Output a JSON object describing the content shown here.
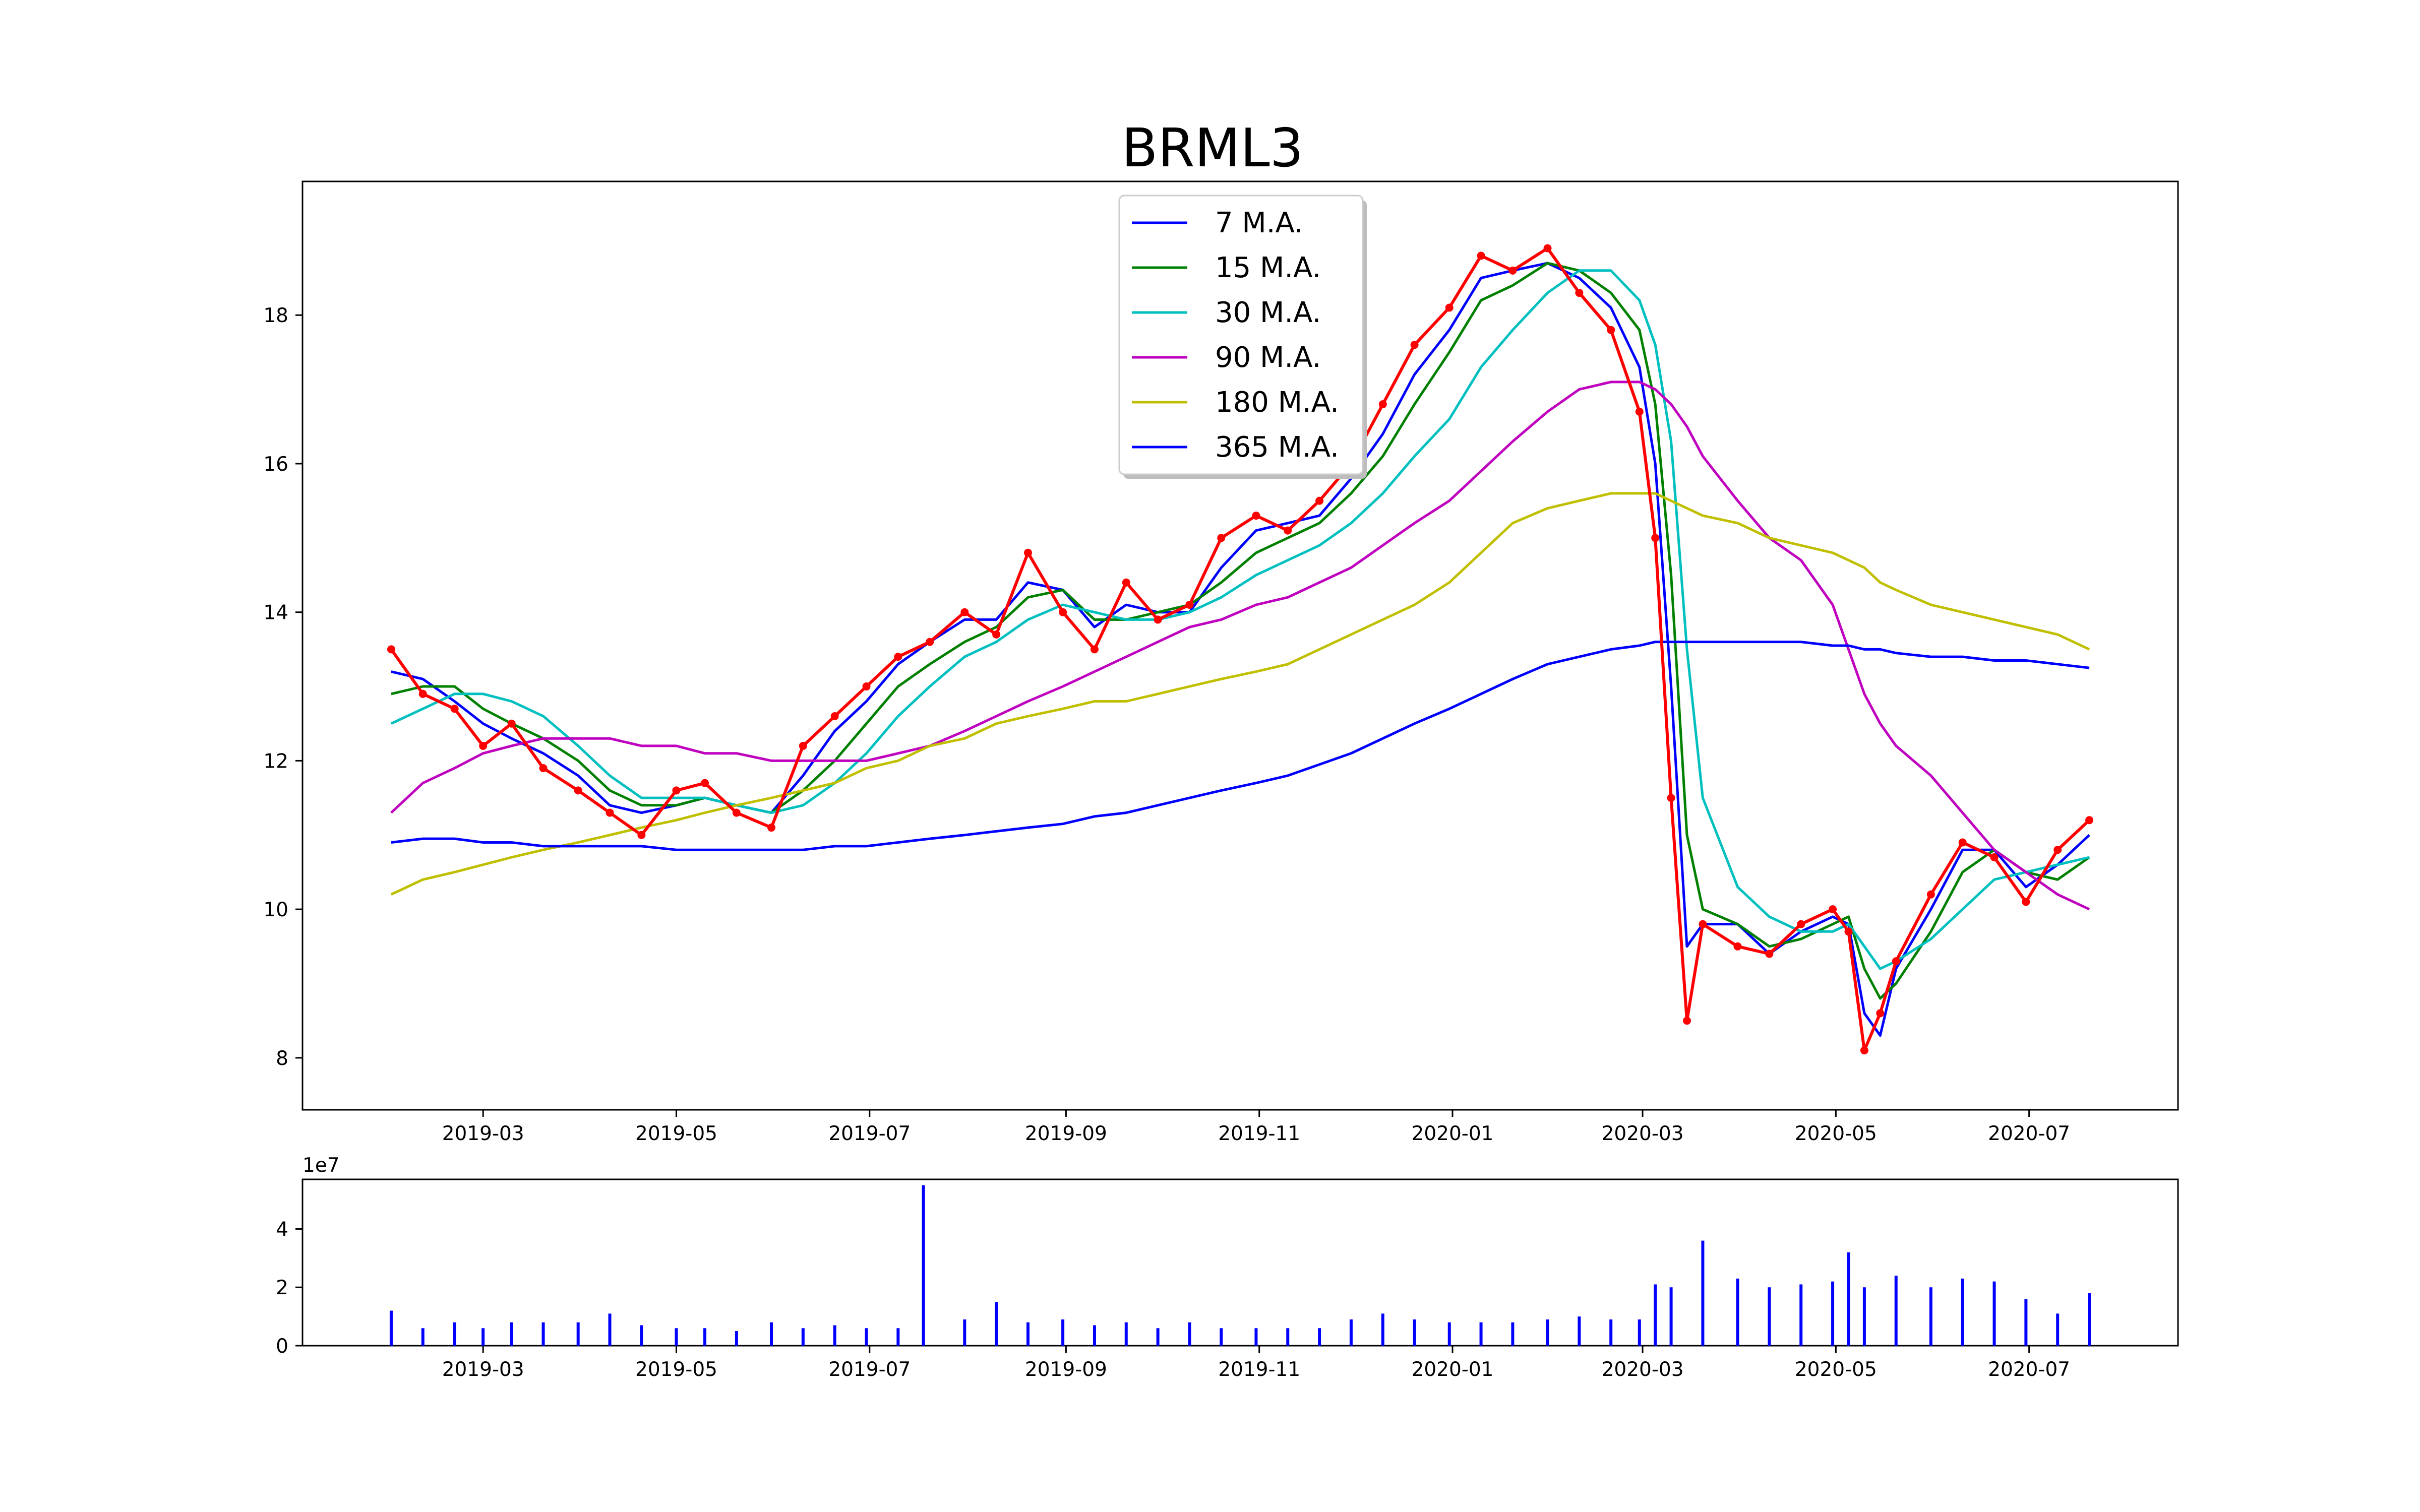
{
  "chart_data": [
    {
      "type": "line",
      "title": "BRML3",
      "xlabel": "",
      "ylabel": "",
      "x_range": [
        "2019-01-03",
        "2020-08-17"
      ],
      "ylim": [
        7.3,
        19.8
      ],
      "x_ticks": [
        "2019-03",
        "2019-05",
        "2019-07",
        "2019-09",
        "2019-11",
        "2020-01",
        "2020-03",
        "2020-05",
        "2020-07"
      ],
      "y_ticks": [
        8,
        10,
        12,
        14,
        16,
        18
      ],
      "legend_position": "top-center",
      "grid": false,
      "x": [
        "2019-01-31",
        "2019-02-10",
        "2019-02-20",
        "2019-03-01",
        "2019-03-10",
        "2019-03-20",
        "2019-03-31",
        "2019-04-10",
        "2019-04-20",
        "2019-05-01",
        "2019-05-10",
        "2019-05-20",
        "2019-05-31",
        "2019-06-10",
        "2019-06-20",
        "2019-06-30",
        "2019-07-10",
        "2019-07-20",
        "2019-07-31",
        "2019-08-10",
        "2019-08-20",
        "2019-08-31",
        "2019-09-10",
        "2019-09-20",
        "2019-09-30",
        "2019-10-10",
        "2019-10-20",
        "2019-10-31",
        "2019-11-10",
        "2019-11-20",
        "2019-11-30",
        "2019-12-10",
        "2019-12-20",
        "2019-12-31",
        "2020-01-10",
        "2020-01-20",
        "2020-01-31",
        "2020-02-10",
        "2020-02-20",
        "2020-02-29",
        "2020-03-05",
        "2020-03-10",
        "2020-03-15",
        "2020-03-20",
        "2020-03-31",
        "2020-04-10",
        "2020-04-20",
        "2020-04-30",
        "2020-05-05",
        "2020-05-10",
        "2020-05-15",
        "2020-05-20",
        "2020-05-31",
        "2020-06-10",
        "2020-06-20",
        "2020-06-30",
        "2020-07-10",
        "2020-07-20"
      ],
      "series": [
        {
          "name": "",
          "color": "#ff0000",
          "markers": true,
          "values": [
            13.5,
            12.9,
            12.7,
            12.2,
            12.5,
            11.9,
            11.6,
            11.3,
            11.0,
            11.6,
            11.7,
            11.3,
            11.1,
            12.2,
            12.6,
            13.0,
            13.4,
            13.6,
            14.0,
            13.7,
            14.8,
            14.0,
            13.5,
            14.4,
            13.9,
            14.1,
            15.0,
            15.3,
            15.1,
            15.5,
            16.0,
            16.8,
            17.6,
            18.1,
            18.8,
            18.6,
            18.9,
            18.3,
            17.8,
            16.7,
            15.0,
            11.5,
            8.5,
            9.8,
            9.5,
            9.4,
            9.8,
            10.0,
            9.7,
            8.1,
            8.6,
            9.3,
            10.2,
            10.9,
            10.7,
            10.1,
            10.8,
            11.2
          ]
        },
        {
          "name": "7 M.A.",
          "color": "#0000ff",
          "markers": false,
          "values": [
            13.2,
            13.1,
            12.8,
            12.5,
            12.3,
            12.1,
            11.8,
            11.4,
            11.3,
            11.4,
            11.5,
            11.4,
            11.3,
            11.8,
            12.4,
            12.8,
            13.3,
            13.6,
            13.9,
            13.9,
            14.4,
            14.3,
            13.8,
            14.1,
            14.0,
            14.0,
            14.6,
            15.1,
            15.2,
            15.3,
            15.8,
            16.4,
            17.2,
            17.8,
            18.5,
            18.6,
            18.7,
            18.5,
            18.1,
            17.3,
            16.0,
            13.0,
            9.5,
            9.8,
            9.8,
            9.4,
            9.7,
            9.9,
            9.8,
            8.6,
            8.3,
            9.2,
            10.0,
            10.8,
            10.8,
            10.3,
            10.6,
            11.0
          ]
        },
        {
          "name": "15 M.A.",
          "color": "#008000",
          "markers": false,
          "values": [
            12.9,
            13.0,
            13.0,
            12.7,
            12.5,
            12.3,
            12.0,
            11.6,
            11.4,
            11.4,
            11.5,
            11.4,
            11.3,
            11.6,
            12.0,
            12.5,
            13.0,
            13.3,
            13.6,
            13.8,
            14.2,
            14.3,
            13.9,
            13.9,
            14.0,
            14.1,
            14.4,
            14.8,
            15.0,
            15.2,
            15.6,
            16.1,
            16.8,
            17.5,
            18.2,
            18.4,
            18.7,
            18.6,
            18.3,
            17.8,
            16.8,
            14.5,
            11.0,
            10.0,
            9.8,
            9.5,
            9.6,
            9.8,
            9.9,
            9.2,
            8.8,
            9.0,
            9.7,
            10.5,
            10.8,
            10.5,
            10.4,
            10.7
          ]
        },
        {
          "name": "30 M.A.",
          "color": "#00bfbf",
          "markers": false,
          "values": [
            12.5,
            12.7,
            12.9,
            12.9,
            12.8,
            12.6,
            12.2,
            11.8,
            11.5,
            11.5,
            11.5,
            11.4,
            11.3,
            11.4,
            11.7,
            12.1,
            12.6,
            13.0,
            13.4,
            13.6,
            13.9,
            14.1,
            14.0,
            13.9,
            13.9,
            14.0,
            14.2,
            14.5,
            14.7,
            14.9,
            15.2,
            15.6,
            16.1,
            16.6,
            17.3,
            17.8,
            18.3,
            18.6,
            18.6,
            18.2,
            17.6,
            16.3,
            13.5,
            11.5,
            10.3,
            9.9,
            9.7,
            9.7,
            9.8,
            9.5,
            9.2,
            9.3,
            9.6,
            10.0,
            10.4,
            10.5,
            10.6,
            10.7
          ]
        },
        {
          "name": "90 M.A.",
          "color": "#bf00bf",
          "markers": false,
          "values": [
            11.3,
            11.7,
            11.9,
            12.1,
            12.2,
            12.3,
            12.3,
            12.3,
            12.2,
            12.2,
            12.1,
            12.1,
            12.0,
            12.0,
            12.0,
            12.0,
            12.1,
            12.2,
            12.4,
            12.6,
            12.8,
            13.0,
            13.2,
            13.4,
            13.6,
            13.8,
            13.9,
            14.1,
            14.2,
            14.4,
            14.6,
            14.9,
            15.2,
            15.5,
            15.9,
            16.3,
            16.7,
            17.0,
            17.1,
            17.1,
            17.0,
            16.8,
            16.5,
            16.1,
            15.5,
            15.0,
            14.7,
            14.1,
            13.5,
            12.9,
            12.5,
            12.2,
            11.8,
            11.3,
            10.8,
            10.5,
            10.2,
            10.0
          ]
        },
        {
          "name": "180 M.A.",
          "color": "#bfbf00",
          "markers": false,
          "values": [
            10.2,
            10.4,
            10.5,
            10.6,
            10.7,
            10.8,
            10.9,
            11.0,
            11.1,
            11.2,
            11.3,
            11.4,
            11.5,
            11.6,
            11.7,
            11.9,
            12.0,
            12.2,
            12.3,
            12.5,
            12.6,
            12.7,
            12.8,
            12.8,
            12.9,
            13.0,
            13.1,
            13.2,
            13.3,
            13.5,
            13.7,
            13.9,
            14.1,
            14.4,
            14.8,
            15.2,
            15.4,
            15.5,
            15.6,
            15.6,
            15.6,
            15.5,
            15.4,
            15.3,
            15.2,
            15.0,
            14.9,
            14.8,
            14.7,
            14.6,
            14.4,
            14.3,
            14.1,
            14.0,
            13.9,
            13.8,
            13.7,
            13.5
          ]
        },
        {
          "name": "365 M.A.",
          "color": "#0000ff",
          "markers": false,
          "values": [
            10.9,
            10.95,
            10.95,
            10.9,
            10.9,
            10.85,
            10.85,
            10.85,
            10.85,
            10.8,
            10.8,
            10.8,
            10.8,
            10.8,
            10.85,
            10.85,
            10.9,
            10.95,
            11.0,
            11.05,
            11.1,
            11.15,
            11.25,
            11.3,
            11.4,
            11.5,
            11.6,
            11.7,
            11.8,
            11.95,
            12.1,
            12.3,
            12.5,
            12.7,
            12.9,
            13.1,
            13.3,
            13.4,
            13.5,
            13.55,
            13.6,
            13.6,
            13.6,
            13.6,
            13.6,
            13.6,
            13.6,
            13.55,
            13.55,
            13.5,
            13.5,
            13.45,
            13.4,
            13.4,
            13.35,
            13.35,
            13.3,
            13.25
          ]
        }
      ]
    },
    {
      "type": "bar",
      "title": "",
      "offset_label": "1e7",
      "x_range": [
        "2019-01-03",
        "2020-08-17"
      ],
      "ylim": [
        0,
        57
      ],
      "x_ticks": [
        "2019-03",
        "2019-05",
        "2019-07",
        "2019-09",
        "2019-11",
        "2020-01",
        "2020-03",
        "2020-05",
        "2020-07"
      ],
      "y_ticks": [
        0,
        2,
        4
      ],
      "color": "#0000ff",
      "x": [
        "2019-01-31",
        "2019-02-10",
        "2019-02-20",
        "2019-03-01",
        "2019-03-10",
        "2019-03-20",
        "2019-03-31",
        "2019-04-10",
        "2019-04-20",
        "2019-05-01",
        "2019-05-10",
        "2019-05-20",
        "2019-05-31",
        "2019-06-10",
        "2019-06-20",
        "2019-06-30",
        "2019-07-10",
        "2019-07-18",
        "2019-07-31",
        "2019-08-10",
        "2019-08-20",
        "2019-08-31",
        "2019-09-10",
        "2019-09-20",
        "2019-09-30",
        "2019-10-10",
        "2019-10-20",
        "2019-10-31",
        "2019-11-10",
        "2019-11-20",
        "2019-11-30",
        "2019-12-10",
        "2019-12-20",
        "2019-12-31",
        "2020-01-10",
        "2020-01-20",
        "2020-01-31",
        "2020-02-10",
        "2020-02-20",
        "2020-02-29",
        "2020-03-05",
        "2020-03-10",
        "2020-03-20",
        "2020-03-31",
        "2020-04-10",
        "2020-04-20",
        "2020-04-30",
        "2020-05-05",
        "2020-05-10",
        "2020-05-20",
        "2020-05-31",
        "2020-06-10",
        "2020-06-20",
        "2020-06-30",
        "2020-07-10",
        "2020-07-20"
      ],
      "values": [
        1.2,
        0.6,
        0.8,
        0.6,
        0.8,
        0.8,
        0.8,
        1.1,
        0.7,
        0.6,
        0.6,
        0.5,
        0.8,
        0.6,
        0.7,
        0.6,
        0.6,
        5.5,
        0.9,
        1.5,
        0.8,
        0.9,
        0.7,
        0.8,
        0.6,
        0.8,
        0.6,
        0.6,
        0.6,
        0.6,
        0.9,
        1.1,
        0.9,
        0.8,
        0.8,
        0.8,
        0.9,
        1.0,
        0.9,
        0.9,
        2.1,
        2.0,
        3.6,
        2.3,
        2.0,
        2.1,
        2.2,
        3.2,
        2.0,
        2.4,
        2.0,
        2.3,
        2.2,
        1.6,
        1.1,
        1.8
      ]
    }
  ]
}
